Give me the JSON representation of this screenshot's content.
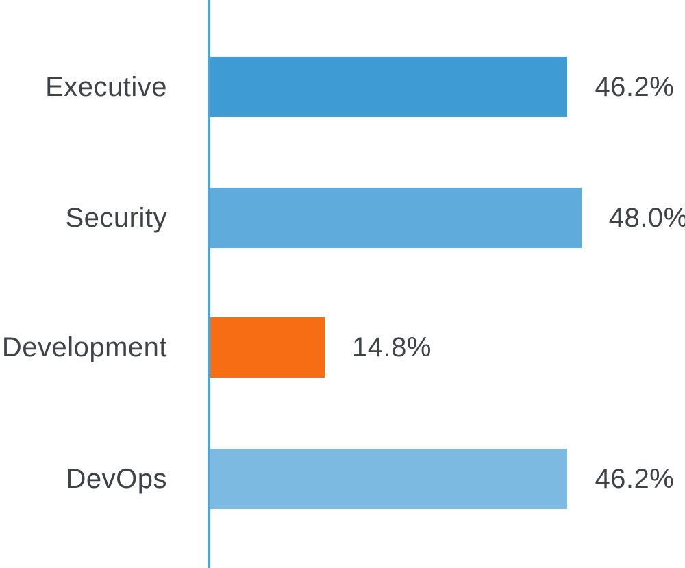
{
  "chart_data": {
    "type": "bar",
    "orientation": "horizontal",
    "title": "",
    "xlabel": "",
    "ylabel": "",
    "categories": [
      "Executive",
      "Security",
      "Development",
      "DevOps"
    ],
    "values": [
      46.2,
      48.0,
      14.8,
      46.2
    ],
    "value_labels": [
      "46.2%",
      "48.0%",
      "14.8%",
      "46.2%"
    ],
    "bar_colors": [
      "#3E9BD4",
      "#5FACDC",
      "#F76D14",
      "#7CBAE2"
    ],
    "axis_color": "#4CA4DB",
    "text_color": "#3F4347",
    "xlim": [
      0,
      61.4
    ],
    "grid": false,
    "legend": false
  }
}
